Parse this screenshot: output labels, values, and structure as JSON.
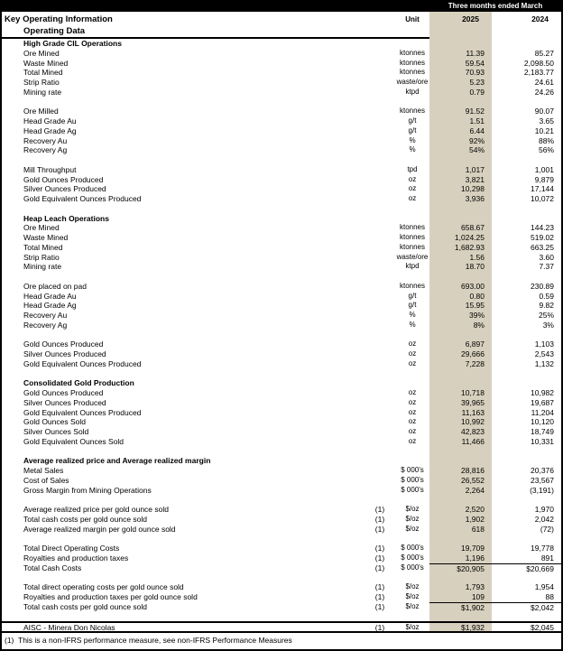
{
  "header": {
    "period_label": "Three months ended March",
    "title": "Key Operating Information",
    "unit_label": "Unit",
    "col_2025": "2025",
    "col_2024": "2024",
    "subtitle": "Operating Data"
  },
  "footnote": {
    "marker": "(1)",
    "text": "This is a non-IFRS performance measure, see non-IFRS Performance Measures"
  },
  "colors": {
    "highlight_column": "#d8d0be",
    "header_bar": "#000000"
  },
  "table": {
    "columns": [
      "label",
      "note",
      "unit",
      "2025",
      "2024"
    ],
    "rows": [
      {
        "type": "section",
        "label": "High Grade CIL Operations"
      },
      {
        "type": "data",
        "label": "Ore Mined",
        "unit": "ktonnes",
        "v2025": "11.39",
        "v2024": "85.27"
      },
      {
        "type": "data",
        "label": "Waste Mined",
        "unit": "ktonnes",
        "v2025": "59.54",
        "v2024": "2,098.50"
      },
      {
        "type": "data",
        "label": "Total Mined",
        "unit": "ktonnes",
        "v2025": "70.93",
        "v2024": "2,183.77"
      },
      {
        "type": "data",
        "label": "Strip Ratio",
        "unit": "waste/ore",
        "v2025": "5.23",
        "v2024": "24.61"
      },
      {
        "type": "data",
        "label": "Mining rate",
        "unit": "ktpd",
        "v2025": "0.79",
        "v2024": "24.26"
      },
      {
        "type": "blank"
      },
      {
        "type": "data",
        "label": "Ore Milled",
        "unit": "ktonnes",
        "v2025": "91.52",
        "v2024": "90.07"
      },
      {
        "type": "data",
        "label": "Head Grade Au",
        "unit": "g/t",
        "v2025": "1.51",
        "v2024": "3.65"
      },
      {
        "type": "data",
        "label": "Head Grade Ag",
        "unit": "g/t",
        "v2025": "6.44",
        "v2024": "10.21"
      },
      {
        "type": "data",
        "label": "Recovery Au",
        "unit": "%",
        "v2025": "92%",
        "v2024": "88%"
      },
      {
        "type": "data",
        "label": "Recovery Ag",
        "unit": "%",
        "v2025": "54%",
        "v2024": "56%"
      },
      {
        "type": "blank"
      },
      {
        "type": "data",
        "label": "Mill Throughput",
        "unit": "tpd",
        "v2025": "1,017",
        "v2024": "1,001"
      },
      {
        "type": "data",
        "label": "Gold Ounces Produced",
        "unit": "oz",
        "v2025": "3,821",
        "v2024": "9,879"
      },
      {
        "type": "data",
        "label": "Silver Ounces Produced",
        "unit": "oz",
        "v2025": "10,298",
        "v2024": "17,144"
      },
      {
        "type": "data",
        "label": "Gold Equivalent Ounces Produced",
        "unit": "oz",
        "v2025": "3,936",
        "v2024": "10,072"
      },
      {
        "type": "blank"
      },
      {
        "type": "section",
        "label": "Heap Leach Operations"
      },
      {
        "type": "data",
        "label": "Ore Mined",
        "unit": "ktonnes",
        "v2025": "658.67",
        "v2024": "144.23"
      },
      {
        "type": "data",
        "label": "Waste Mined",
        "unit": "ktonnes",
        "v2025": "1,024.25",
        "v2024": "519.02"
      },
      {
        "type": "data",
        "label": "Total Mined",
        "unit": "ktonnes",
        "v2025": "1,682.93",
        "v2024": "663.25"
      },
      {
        "type": "data",
        "label": "Strip Ratio",
        "unit": "waste/ore",
        "v2025": "1.56",
        "v2024": "3.60"
      },
      {
        "type": "data",
        "label": "Mining rate",
        "unit": "ktpd",
        "v2025": "18.70",
        "v2024": "7.37"
      },
      {
        "type": "blank"
      },
      {
        "type": "data",
        "label": "Ore placed on pad",
        "unit": "ktonnes",
        "v2025": "693.00",
        "v2024": "230.89"
      },
      {
        "type": "data",
        "label": "Head Grade Au",
        "unit": "g/t",
        "v2025": "0.80",
        "v2024": "0.59"
      },
      {
        "type": "data",
        "label": "Head Grade Ag",
        "unit": "g/t",
        "v2025": "15.95",
        "v2024": "9.82"
      },
      {
        "type": "data",
        "label": "Recovery Au",
        "unit": "%",
        "v2025": "39%",
        "v2024": "25%"
      },
      {
        "type": "data",
        "label": "Recovery Ag",
        "unit": "%",
        "v2025": "8%",
        "v2024": "3%"
      },
      {
        "type": "blank"
      },
      {
        "type": "data",
        "label": "Gold Ounces Produced",
        "unit": "oz",
        "v2025": "6,897",
        "v2024": "1,103"
      },
      {
        "type": "data",
        "label": "Silver Ounces Produced",
        "unit": "oz",
        "v2025": "29,666",
        "v2024": "2,543"
      },
      {
        "type": "data",
        "label": "Gold Equivalent Ounces Produced",
        "unit": "oz",
        "v2025": "7,228",
        "v2024": "1,132"
      },
      {
        "type": "blank"
      },
      {
        "type": "section",
        "label": "Consolidated Gold Production"
      },
      {
        "type": "data",
        "label": "Gold Ounces Produced",
        "unit": "oz",
        "v2025": "10,718",
        "v2024": "10,982"
      },
      {
        "type": "data",
        "label": "Silver Ounces Produced",
        "unit": "oz",
        "v2025": "39,965",
        "v2024": "19,687"
      },
      {
        "type": "data",
        "label": "Gold Equivalent Ounces Produced",
        "unit": "oz",
        "v2025": "11,163",
        "v2024": "11,204"
      },
      {
        "type": "data",
        "label": "Gold Ounces Sold",
        "unit": "oz",
        "v2025": "10,992",
        "v2024": "10,120"
      },
      {
        "type": "data",
        "label": "Silver Ounces Sold",
        "unit": "oz",
        "v2025": "42,823",
        "v2024": "18,749"
      },
      {
        "type": "data",
        "label": "Gold Equivalent Ounces Sold",
        "unit": "oz",
        "v2025": "11,466",
        "v2024": "10,331"
      },
      {
        "type": "blank"
      },
      {
        "type": "section",
        "label": "Average realized price and Average realized margin"
      },
      {
        "type": "data",
        "label": "Metal Sales",
        "unit": "$ 000's",
        "v2025": "28,816",
        "v2024": "20,376"
      },
      {
        "type": "data",
        "label": "Cost of Sales",
        "unit": "$ 000's",
        "v2025": "26,552",
        "v2024": "23,567"
      },
      {
        "type": "data",
        "label": "Gross Margin from Mining Operations",
        "unit": "$ 000's",
        "v2025": "2,264",
        "v2024": "(3,191)"
      },
      {
        "type": "blank"
      },
      {
        "type": "data",
        "label": "Average realized price per gold ounce sold",
        "note": "(1)",
        "unit": "$/oz",
        "v2025": "2,520",
        "v2024": "1,970"
      },
      {
        "type": "data",
        "label": "Total cash costs per gold ounce sold",
        "note": "(1)",
        "unit": "$/oz",
        "v2025": "1,902",
        "v2024": "2,042"
      },
      {
        "type": "data",
        "label": "Average realized margin per gold ounce sold",
        "note": "(1)",
        "unit": "$/oz",
        "v2025": "618",
        "v2024": "(72)"
      },
      {
        "type": "blank"
      },
      {
        "type": "data",
        "label": "Total Direct Operating Costs",
        "note": "(1)",
        "unit": "$ 000's",
        "v2025": "19,709",
        "v2024": "19,778"
      },
      {
        "type": "data",
        "label": "Royalties and production taxes",
        "note": "(1)",
        "unit": "$ 000's",
        "v2025": "1,196",
        "v2024": "891"
      },
      {
        "type": "total",
        "label": "Total Cash Costs",
        "note": "(1)",
        "unit": "$ 000's",
        "v2025": "$20,905",
        "v2024": "$20,669"
      },
      {
        "type": "blank"
      },
      {
        "type": "data",
        "label": "Total direct operating costs per gold ounce sold",
        "note": "(1)",
        "unit": "$/oz",
        "v2025": "1,793",
        "v2024": "1,954"
      },
      {
        "type": "data",
        "label": "Royalties and production taxes per gold ounce sold",
        "note": "(1)",
        "unit": "$/oz",
        "v2025": "109",
        "v2024": "88"
      },
      {
        "type": "total",
        "label": "Total cash costs per gold ounce sold",
        "note": "(1)",
        "unit": "$/oz",
        "v2025": "$1,902",
        "v2024": "$2,042"
      },
      {
        "type": "blank"
      },
      {
        "type": "rule-total",
        "label": "AISC - Minera Don Nicolas",
        "note": "(1)",
        "unit": "$/oz",
        "v2025": "$1,932",
        "v2024": "$2,045"
      }
    ]
  }
}
